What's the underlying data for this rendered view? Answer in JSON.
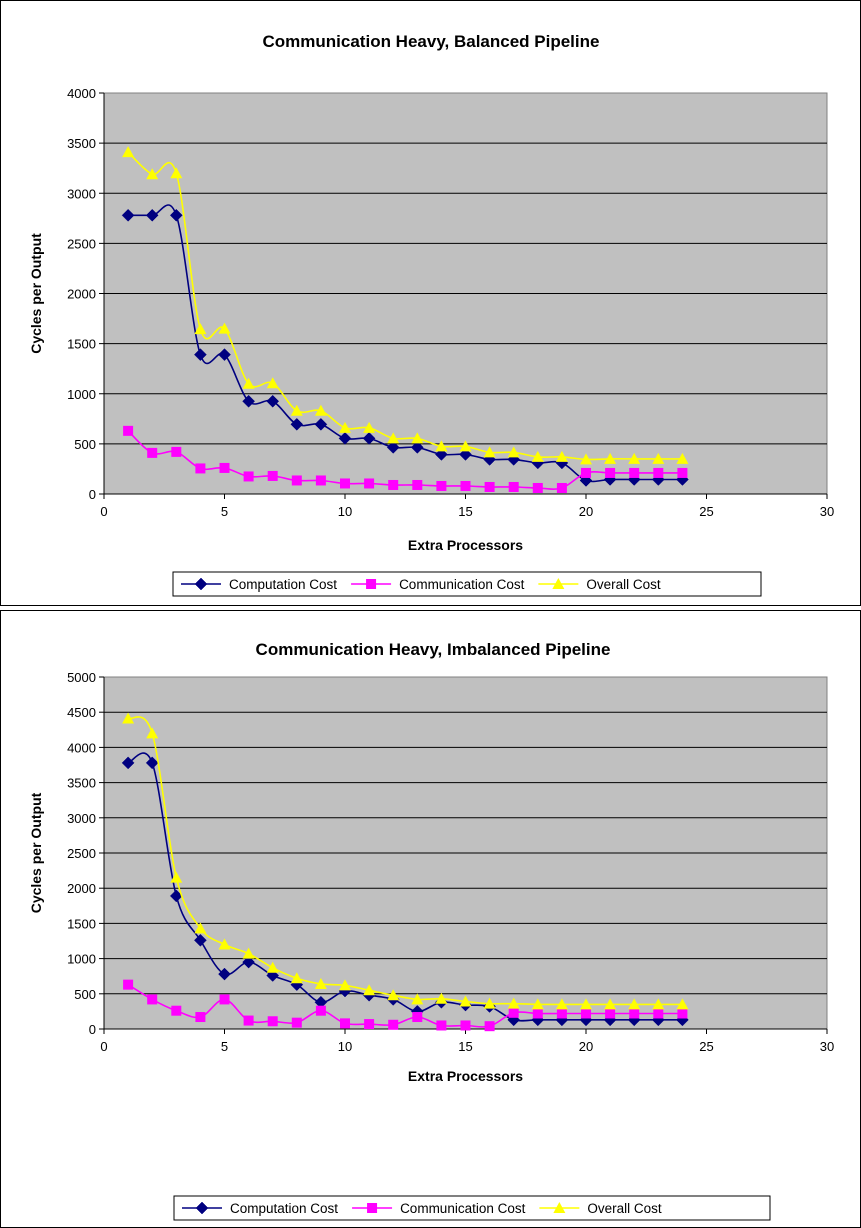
{
  "chart_data": [
    {
      "type": "line",
      "title": "Communication Heavy, Balanced Pipeline",
      "xlabel": "Extra Processors",
      "ylabel": "Cycles per Output",
      "xlim": [
        0,
        30
      ],
      "ylim": [
        0,
        4000
      ],
      "xticks": [
        "0",
        "5",
        "10",
        "15",
        "20",
        "25",
        "30"
      ],
      "yticks": [
        "0",
        "500",
        "1000",
        "1500",
        "2000",
        "2500",
        "3000",
        "3500",
        "4000"
      ],
      "grid": true,
      "legend": "bottom",
      "x": [
        1,
        2,
        3,
        4,
        5,
        6,
        7,
        8,
        9,
        10,
        11,
        12,
        13,
        14,
        15,
        16,
        17,
        18,
        19,
        20,
        21,
        22,
        23,
        24
      ],
      "series": [
        {
          "name": "Computation Cost",
          "color": "#000080",
          "marker": "diamond",
          "values": [
            2780,
            2780,
            2780,
            1390,
            1390,
            925,
            925,
            695,
            695,
            555,
            555,
            465,
            465,
            395,
            395,
            345,
            345,
            310,
            310,
            135,
            145,
            145,
            145,
            145
          ]
        },
        {
          "name": "Communication Cost",
          "color": "#FF00FF",
          "marker": "square",
          "values": [
            630,
            410,
            420,
            255,
            260,
            175,
            180,
            135,
            135,
            105,
            105,
            90,
            90,
            80,
            80,
            70,
            70,
            60,
            60,
            210,
            210,
            210,
            210,
            210
          ]
        },
        {
          "name": "Overall Cost",
          "color": "#FFFF00",
          "marker": "triangle",
          "values": [
            3410,
            3190,
            3200,
            1645,
            1650,
            1100,
            1105,
            830,
            830,
            660,
            660,
            555,
            555,
            475,
            475,
            415,
            415,
            370,
            370,
            345,
            350,
            350,
            350,
            350
          ]
        }
      ]
    },
    {
      "type": "line",
      "title": "Communication Heavy, Imbalanced Pipeline",
      "xlabel": "Extra Processors",
      "ylabel": "Cycles per Output",
      "xlim": [
        0,
        30
      ],
      "ylim": [
        0,
        5000
      ],
      "xticks": [
        "0",
        "5",
        "10",
        "15",
        "20",
        "25",
        "30"
      ],
      "yticks": [
        "0",
        "500",
        "1000",
        "1500",
        "2000",
        "2500",
        "3000",
        "3500",
        "4000",
        "4500",
        "5000"
      ],
      "grid": true,
      "legend": "bottom",
      "x": [
        1,
        2,
        3,
        4,
        5,
        6,
        7,
        8,
        9,
        10,
        11,
        12,
        13,
        14,
        15,
        16,
        17,
        18,
        19,
        20,
        21,
        22,
        23,
        24
      ],
      "series": [
        {
          "name": "Computation Cost",
          "color": "#000080",
          "marker": "diamond",
          "values": [
            3780,
            3780,
            1890,
            1260,
            780,
            950,
            760,
            630,
            380,
            540,
            480,
            420,
            250,
            380,
            340,
            320,
            130,
            130,
            130,
            130,
            130,
            130,
            130,
            130
          ]
        },
        {
          "name": "Communication Cost",
          "color": "#FF00FF",
          "marker": "square",
          "values": [
            630,
            420,
            260,
            170,
            420,
            120,
            110,
            90,
            260,
            80,
            70,
            60,
            170,
            50,
            50,
            40,
            230,
            220,
            220,
            220,
            220,
            220,
            220,
            220
          ]
        },
        {
          "name": "Overall Cost",
          "color": "#FFFF00",
          "marker": "triangle",
          "values": [
            4410,
            4200,
            2150,
            1430,
            1200,
            1070,
            870,
            720,
            640,
            620,
            550,
            480,
            420,
            430,
            390,
            360,
            360,
            350,
            350,
            350,
            350,
            350,
            350,
            350
          ]
        }
      ]
    }
  ]
}
